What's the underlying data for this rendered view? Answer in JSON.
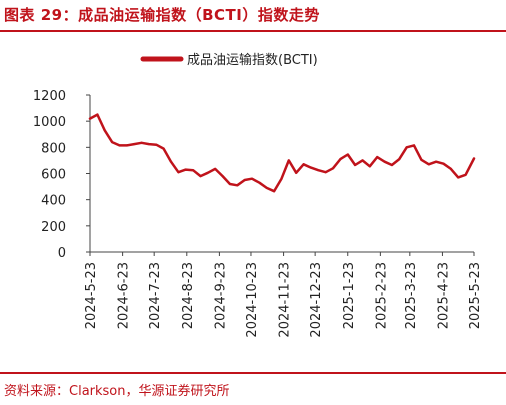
{
  "figure": {
    "title": "图表 29：成品油运输指数（BCTI）指数走势",
    "source": "资料来源：Clarkson，华源证券研究所"
  },
  "colors": {
    "accent": "#c0131b",
    "axis": "#444444",
    "text": "#222222"
  },
  "chart_data": {
    "type": "line",
    "title": "",
    "xlabel": "",
    "ylabel": "",
    "ylim": [
      0,
      1200
    ],
    "yticks": [
      0,
      200,
      400,
      600,
      800,
      1000,
      1200
    ],
    "xlim": [
      "2024-05-23",
      "2025-05-23"
    ],
    "xticks": [
      "2024-5-23",
      "2024-6-23",
      "2024-7-23",
      "2024-8-23",
      "2024-9-23",
      "2024-10-23",
      "2024-11-23",
      "2024-12-23",
      "2025-1-23",
      "2025-2-23",
      "2025-3-23",
      "2025-4-23",
      "2025-5-23"
    ],
    "grid": false,
    "legend": "top-left",
    "series": [
      {
        "name": "成品油运输指数(BCTI)",
        "color": "#c0131b",
        "points": [
          [
            "2024-05-23",
            1020
          ],
          [
            "2024-05-30",
            1050
          ],
          [
            "2024-06-06",
            930
          ],
          [
            "2024-06-13",
            840
          ],
          [
            "2024-06-20",
            815
          ],
          [
            "2024-06-27",
            815
          ],
          [
            "2024-07-04",
            825
          ],
          [
            "2024-07-11",
            835
          ],
          [
            "2024-07-18",
            825
          ],
          [
            "2024-07-25",
            820
          ],
          [
            "2024-08-01",
            790
          ],
          [
            "2024-08-08",
            690
          ],
          [
            "2024-08-15",
            610
          ],
          [
            "2024-08-22",
            630
          ],
          [
            "2024-08-29",
            625
          ],
          [
            "2024-09-05",
            580
          ],
          [
            "2024-09-12",
            605
          ],
          [
            "2024-09-19",
            635
          ],
          [
            "2024-09-26",
            580
          ],
          [
            "2024-10-03",
            520
          ],
          [
            "2024-10-10",
            510
          ],
          [
            "2024-10-17",
            550
          ],
          [
            "2024-10-24",
            560
          ],
          [
            "2024-10-31",
            530
          ],
          [
            "2024-11-07",
            490
          ],
          [
            "2024-11-14",
            465
          ],
          [
            "2024-11-21",
            560
          ],
          [
            "2024-11-28",
            700
          ],
          [
            "2024-12-05",
            605
          ],
          [
            "2024-12-12",
            670
          ],
          [
            "2024-12-19",
            645
          ],
          [
            "2024-12-26",
            625
          ],
          [
            "2025-01-02",
            610
          ],
          [
            "2025-01-09",
            640
          ],
          [
            "2025-01-16",
            710
          ],
          [
            "2025-01-23",
            745
          ],
          [
            "2025-01-30",
            665
          ],
          [
            "2025-02-06",
            700
          ],
          [
            "2025-02-13",
            655
          ],
          [
            "2025-02-20",
            725
          ],
          [
            "2025-02-27",
            690
          ],
          [
            "2025-03-06",
            665
          ],
          [
            "2025-03-13",
            710
          ],
          [
            "2025-03-20",
            800
          ],
          [
            "2025-03-27",
            815
          ],
          [
            "2025-04-03",
            705
          ],
          [
            "2025-04-10",
            670
          ],
          [
            "2025-04-17",
            690
          ],
          [
            "2025-04-24",
            675
          ],
          [
            "2025-05-01",
            635
          ],
          [
            "2025-05-08",
            570
          ],
          [
            "2025-05-15",
            590
          ],
          [
            "2025-05-23",
            715
          ]
        ]
      }
    ]
  }
}
